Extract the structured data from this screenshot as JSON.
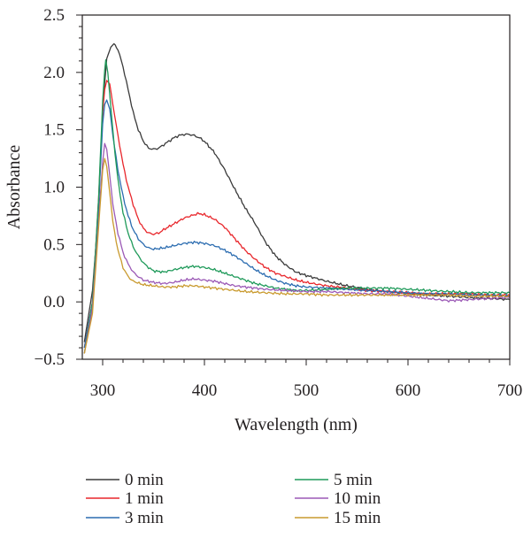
{
  "chart_data": {
    "type": "line",
    "title": "",
    "xlabel": "Wavelength (nm)",
    "ylabel": "Absorbance",
    "xlim": [
      280,
      700
    ],
    "ylim": [
      -0.5,
      2.5
    ],
    "xticks": [
      300,
      400,
      500,
      600,
      700
    ],
    "xtick_labels": [
      "300",
      "400",
      "500",
      "600",
      "700"
    ],
    "yticks": [
      -0.5,
      0.0,
      0.5,
      1.0,
      1.5,
      2.0,
      2.5
    ],
    "ytick_labels": [
      "−0.5",
      "0.0",
      "0.5",
      "1.0",
      "1.5",
      "2.0",
      "2.5"
    ],
    "grid": false,
    "legend_position": "bottom",
    "series": [
      {
        "name": "0 min",
        "color": "#3a3a3a",
        "points": [
          [
            282,
            -0.35
          ],
          [
            290,
            0.1
          ],
          [
            296,
            0.8
          ],
          [
            300,
            1.7
          ],
          [
            304,
            2.12
          ],
          [
            308,
            2.22
          ],
          [
            311,
            2.25
          ],
          [
            315,
            2.2
          ],
          [
            320,
            2.05
          ],
          [
            325,
            1.85
          ],
          [
            330,
            1.65
          ],
          [
            335,
            1.5
          ],
          [
            340,
            1.4
          ],
          [
            345,
            1.34
          ],
          [
            350,
            1.33
          ],
          [
            355,
            1.34
          ],
          [
            360,
            1.37
          ],
          [
            365,
            1.4
          ],
          [
            370,
            1.43
          ],
          [
            375,
            1.45
          ],
          [
            380,
            1.46
          ],
          [
            385,
            1.46
          ],
          [
            390,
            1.45
          ],
          [
            395,
            1.43
          ],
          [
            400,
            1.4
          ],
          [
            410,
            1.3
          ],
          [
            420,
            1.15
          ],
          [
            430,
            0.98
          ],
          [
            440,
            0.82
          ],
          [
            450,
            0.68
          ],
          [
            460,
            0.52
          ],
          [
            470,
            0.4
          ],
          [
            480,
            0.32
          ],
          [
            490,
            0.26
          ],
          [
            500,
            0.23
          ],
          [
            520,
            0.18
          ],
          [
            540,
            0.14
          ],
          [
            560,
            0.11
          ],
          [
            580,
            0.09
          ],
          [
            600,
            0.07
          ],
          [
            620,
            0.06
          ],
          [
            640,
            0.05
          ],
          [
            660,
            0.04
          ],
          [
            680,
            0.03
          ],
          [
            700,
            0.02
          ]
        ]
      },
      {
        "name": "1 min",
        "color": "#e8262b",
        "points": [
          [
            282,
            -0.4
          ],
          [
            290,
            0.0
          ],
          [
            296,
            0.9
          ],
          [
            300,
            1.65
          ],
          [
            302,
            1.85
          ],
          [
            304,
            1.93
          ],
          [
            307,
            1.9
          ],
          [
            310,
            1.72
          ],
          [
            315,
            1.45
          ],
          [
            320,
            1.2
          ],
          [
            325,
            1.0
          ],
          [
            330,
            0.85
          ],
          [
            335,
            0.72
          ],
          [
            340,
            0.64
          ],
          [
            345,
            0.6
          ],
          [
            350,
            0.59
          ],
          [
            355,
            0.6
          ],
          [
            360,
            0.63
          ],
          [
            370,
            0.68
          ],
          [
            380,
            0.73
          ],
          [
            390,
            0.76
          ],
          [
            395,
            0.77
          ],
          [
            400,
            0.76
          ],
          [
            410,
            0.72
          ],
          [
            420,
            0.65
          ],
          [
            430,
            0.55
          ],
          [
            440,
            0.45
          ],
          [
            450,
            0.37
          ],
          [
            460,
            0.3
          ],
          [
            470,
            0.25
          ],
          [
            480,
            0.22
          ],
          [
            490,
            0.19
          ],
          [
            500,
            0.17
          ],
          [
            520,
            0.14
          ],
          [
            540,
            0.12
          ],
          [
            560,
            0.1
          ],
          [
            580,
            0.09
          ],
          [
            600,
            0.08
          ],
          [
            620,
            0.07
          ],
          [
            640,
            0.07
          ],
          [
            660,
            0.07
          ],
          [
            680,
            0.06
          ],
          [
            700,
            0.06
          ]
        ]
      },
      {
        "name": "3 min",
        "color": "#2b6cb0",
        "points": [
          [
            282,
            -0.4
          ],
          [
            290,
            0.0
          ],
          [
            296,
            0.85
          ],
          [
            300,
            1.55
          ],
          [
            302,
            1.72
          ],
          [
            304,
            1.76
          ],
          [
            307,
            1.68
          ],
          [
            310,
            1.45
          ],
          [
            315,
            1.15
          ],
          [
            320,
            0.92
          ],
          [
            325,
            0.75
          ],
          [
            330,
            0.63
          ],
          [
            335,
            0.55
          ],
          [
            340,
            0.5
          ],
          [
            345,
            0.47
          ],
          [
            350,
            0.46
          ],
          [
            360,
            0.47
          ],
          [
            370,
            0.49
          ],
          [
            380,
            0.51
          ],
          [
            390,
            0.52
          ],
          [
            400,
            0.51
          ],
          [
            410,
            0.49
          ],
          [
            420,
            0.45
          ],
          [
            430,
            0.4
          ],
          [
            440,
            0.34
          ],
          [
            450,
            0.28
          ],
          [
            460,
            0.23
          ],
          [
            470,
            0.19
          ],
          [
            480,
            0.16
          ],
          [
            490,
            0.14
          ],
          [
            500,
            0.13
          ],
          [
            520,
            0.12
          ],
          [
            540,
            0.11
          ],
          [
            560,
            0.1
          ],
          [
            580,
            0.09
          ],
          [
            600,
            0.08
          ],
          [
            620,
            0.07
          ],
          [
            640,
            0.07
          ],
          [
            660,
            0.06
          ],
          [
            680,
            0.06
          ],
          [
            700,
            0.05
          ]
        ]
      },
      {
        "name": "5 min",
        "color": "#1f9a5a",
        "points": [
          [
            282,
            -0.45
          ],
          [
            290,
            0.0
          ],
          [
            296,
            0.9
          ],
          [
            300,
            1.75
          ],
          [
            302,
            2.02
          ],
          [
            303,
            2.11
          ],
          [
            305,
            2.0
          ],
          [
            308,
            1.7
          ],
          [
            312,
            1.3
          ],
          [
            316,
            1.0
          ],
          [
            320,
            0.78
          ],
          [
            325,
            0.6
          ],
          [
            330,
            0.48
          ],
          [
            335,
            0.4
          ],
          [
            340,
            0.34
          ],
          [
            345,
            0.3
          ],
          [
            350,
            0.27
          ],
          [
            360,
            0.26
          ],
          [
            370,
            0.28
          ],
          [
            380,
            0.3
          ],
          [
            390,
            0.31
          ],
          [
            400,
            0.3
          ],
          [
            410,
            0.28
          ],
          [
            420,
            0.25
          ],
          [
            430,
            0.22
          ],
          [
            440,
            0.19
          ],
          [
            450,
            0.16
          ],
          [
            460,
            0.14
          ],
          [
            470,
            0.12
          ],
          [
            480,
            0.11
          ],
          [
            490,
            0.1
          ],
          [
            500,
            0.1
          ],
          [
            520,
            0.11
          ],
          [
            540,
            0.12
          ],
          [
            560,
            0.12
          ],
          [
            580,
            0.12
          ],
          [
            600,
            0.11
          ],
          [
            620,
            0.1
          ],
          [
            640,
            0.09
          ],
          [
            660,
            0.08
          ],
          [
            680,
            0.08
          ],
          [
            700,
            0.08
          ]
        ]
      },
      {
        "name": "10 min",
        "color": "#9b59b6",
        "points": [
          [
            282,
            -0.45
          ],
          [
            290,
            -0.05
          ],
          [
            296,
            0.7
          ],
          [
            300,
            1.22
          ],
          [
            302,
            1.38
          ],
          [
            304,
            1.33
          ],
          [
            307,
            1.1
          ],
          [
            310,
            0.85
          ],
          [
            315,
            0.6
          ],
          [
            320,
            0.43
          ],
          [
            325,
            0.33
          ],
          [
            330,
            0.26
          ],
          [
            335,
            0.22
          ],
          [
            340,
            0.19
          ],
          [
            350,
            0.17
          ],
          [
            360,
            0.16
          ],
          [
            370,
            0.17
          ],
          [
            380,
            0.19
          ],
          [
            390,
            0.2
          ],
          [
            400,
            0.19
          ],
          [
            410,
            0.18
          ],
          [
            420,
            0.16
          ],
          [
            430,
            0.14
          ],
          [
            440,
            0.13
          ],
          [
            450,
            0.12
          ],
          [
            460,
            0.11
          ],
          [
            480,
            0.1
          ],
          [
            500,
            0.09
          ],
          [
            520,
            0.09
          ],
          [
            540,
            0.08
          ],
          [
            560,
            0.07
          ],
          [
            580,
            0.07
          ],
          [
            600,
            0.05
          ],
          [
            620,
            0.03
          ],
          [
            640,
            0.01
          ],
          [
            660,
            0.02
          ],
          [
            680,
            0.03
          ],
          [
            700,
            0.04
          ]
        ]
      },
      {
        "name": "15 min",
        "color": "#c99a2e",
        "points": [
          [
            282,
            -0.45
          ],
          [
            290,
            -0.1
          ],
          [
            296,
            0.65
          ],
          [
            300,
            1.15
          ],
          [
            302,
            1.25
          ],
          [
            304,
            1.18
          ],
          [
            307,
            0.95
          ],
          [
            310,
            0.7
          ],
          [
            315,
            0.45
          ],
          [
            320,
            0.3
          ],
          [
            325,
            0.22
          ],
          [
            330,
            0.18
          ],
          [
            340,
            0.15
          ],
          [
            350,
            0.14
          ],
          [
            360,
            0.13
          ],
          [
            370,
            0.13
          ],
          [
            380,
            0.14
          ],
          [
            390,
            0.14
          ],
          [
            400,
            0.13
          ],
          [
            420,
            0.11
          ],
          [
            440,
            0.09
          ],
          [
            460,
            0.08
          ],
          [
            480,
            0.07
          ],
          [
            500,
            0.07
          ],
          [
            520,
            0.06
          ],
          [
            540,
            0.06
          ],
          [
            560,
            0.06
          ],
          [
            580,
            0.06
          ],
          [
            600,
            0.06
          ],
          [
            620,
            0.06
          ],
          [
            640,
            0.06
          ],
          [
            660,
            0.05
          ],
          [
            680,
            0.05
          ],
          [
            700,
            0.05
          ]
        ]
      }
    ]
  }
}
